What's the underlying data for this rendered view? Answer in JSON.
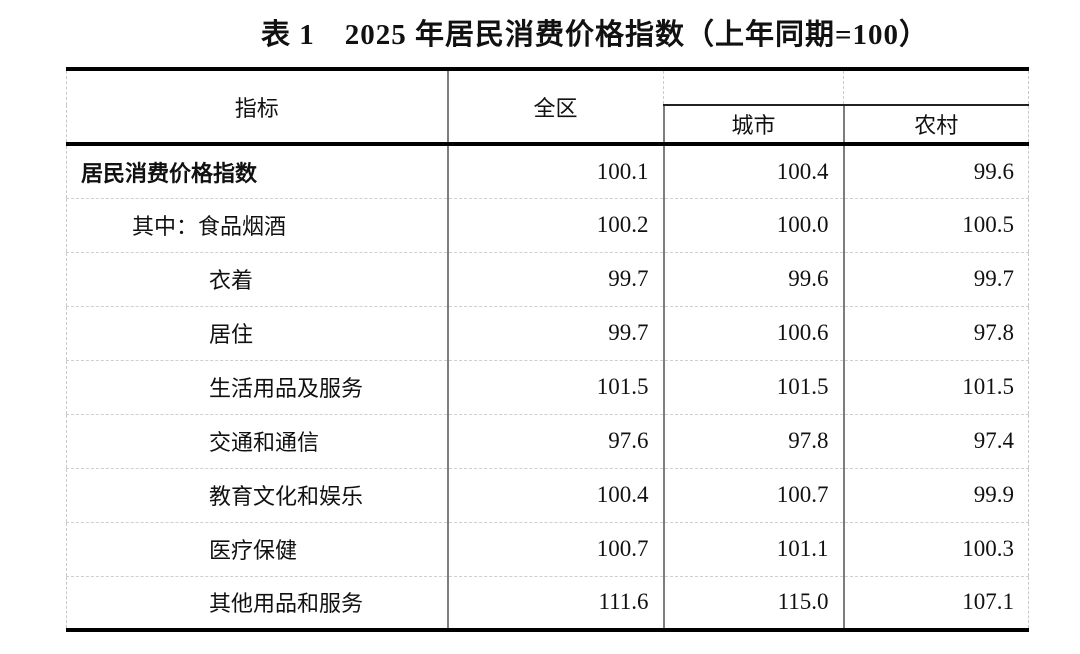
{
  "title": "表 1　2025 年居民消费价格指数（上年同期=100）",
  "table": {
    "header": {
      "indicator": "指标",
      "region": "全区",
      "urban": "城市",
      "rural": "农村"
    },
    "rows": [
      {
        "label": "居民消费价格指数",
        "bold": true,
        "indent": 0,
        "region": "100.1",
        "urban": "100.4",
        "rural": "99.6"
      },
      {
        "label": "其中：食品烟酒",
        "bold": false,
        "indent": 1,
        "region": "100.2",
        "urban": "100.0",
        "rural": "100.5"
      },
      {
        "label": "衣着",
        "bold": false,
        "indent": 2,
        "region": "99.7",
        "urban": "99.6",
        "rural": "99.7"
      },
      {
        "label": "居住",
        "bold": false,
        "indent": 2,
        "region": "99.7",
        "urban": "100.6",
        "rural": "97.8"
      },
      {
        "label": "生活用品及服务",
        "bold": false,
        "indent": 2,
        "region": "101.5",
        "urban": "101.5",
        "rural": "101.5"
      },
      {
        "label": "交通和通信",
        "bold": false,
        "indent": 2,
        "region": "97.6",
        "urban": "97.8",
        "rural": "97.4"
      },
      {
        "label": "教育文化和娱乐",
        "bold": false,
        "indent": 2,
        "region": "100.4",
        "urban": "100.7",
        "rural": "99.9"
      },
      {
        "label": "医疗保健",
        "bold": false,
        "indent": 2,
        "region": "100.7",
        "urban": "101.1",
        "rural": "100.3"
      },
      {
        "label": "其他用品和服务",
        "bold": false,
        "indent": 2,
        "region": "111.6",
        "urban": "115.0",
        "rural": "107.1"
      }
    ]
  }
}
